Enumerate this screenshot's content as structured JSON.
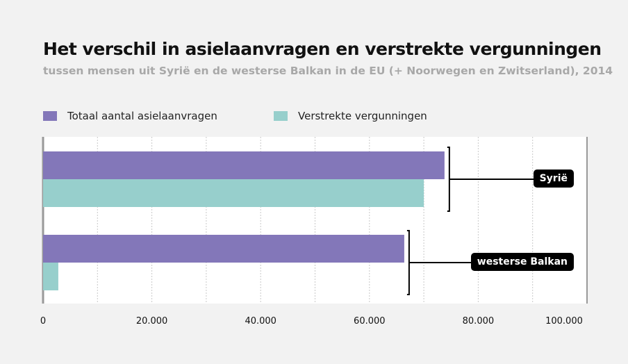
{
  "chart_data": {
    "type": "bar",
    "orientation": "horizontal",
    "title": "Het verschil in asielaanvragen en verstrekte vergunningen",
    "subtitle": "tussen mensen uit Syrië en de westerse Balkan in de EU (+ Noorwegen en Zwitserland), 2014",
    "categories": [
      "Syrië",
      "westerse Balkan"
    ],
    "series": [
      {
        "name": "Totaal aantal asielaanvragen",
        "color": "#8377b9",
        "values": [
          73800,
          66400
        ]
      },
      {
        "name": "Verstrekte vergunningen",
        "color": "#97cfcc",
        "values": [
          70000,
          2800
        ]
      }
    ],
    "xlim": [
      0,
      100000
    ],
    "xticks": [
      0,
      20000,
      40000,
      60000,
      80000,
      100000
    ],
    "xtick_labels": [
      "0",
      "20.000",
      "40.000",
      "60.000",
      "80.000",
      "100.000"
    ],
    "grid": "vertical dotted every 10.000",
    "legend": "top-left"
  }
}
